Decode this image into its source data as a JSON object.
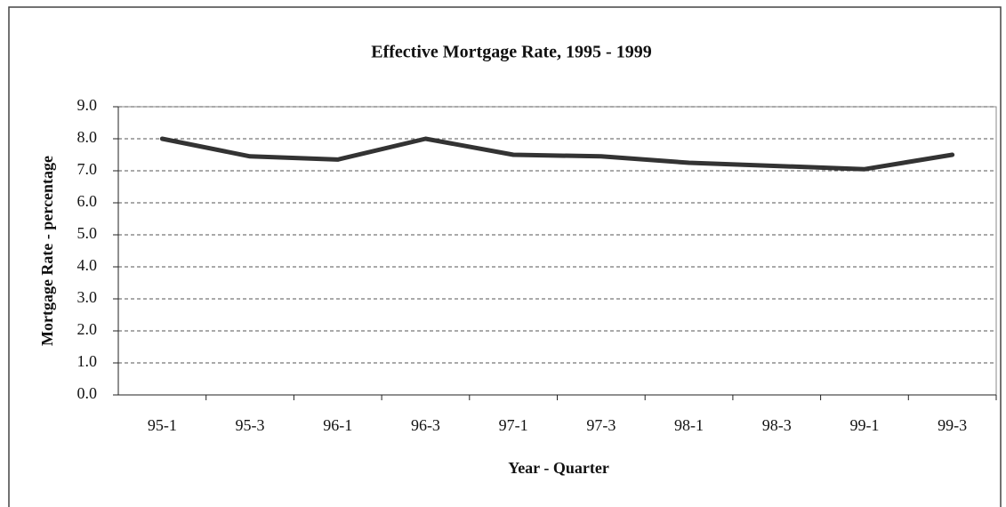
{
  "chart_data": {
    "type": "line",
    "title": "Effective Mortgage Rate, 1995 - 1999",
    "x_label": "Year - Quarter",
    "y_label": "Mortgage Rate - percentage",
    "categories": [
      "95-1",
      "95-3",
      "96-1",
      "96-3",
      "97-1",
      "97-3",
      "98-1",
      "98-3",
      "99-1",
      "99-3"
    ],
    "values": [
      8.0,
      7.45,
      7.35,
      8.0,
      7.5,
      7.45,
      7.25,
      7.15,
      7.05,
      7.5
    ],
    "color": "#333333",
    "ylim": [
      0,
      9
    ],
    "yticks": [
      {
        "value": 0,
        "label": "0.0"
      },
      {
        "value": 1,
        "label": "1.0"
      },
      {
        "value": 2,
        "label": "2.0"
      },
      {
        "value": 3,
        "label": "3.0"
      },
      {
        "value": 4,
        "label": "4.0"
      },
      {
        "value": 5,
        "label": "5.0"
      },
      {
        "value": 6,
        "label": "6.0"
      },
      {
        "value": 7,
        "label": "7.0"
      },
      {
        "value": 8,
        "label": "8.0"
      },
      {
        "value": 9,
        "label": "9.0"
      }
    ],
    "grid": true
  }
}
